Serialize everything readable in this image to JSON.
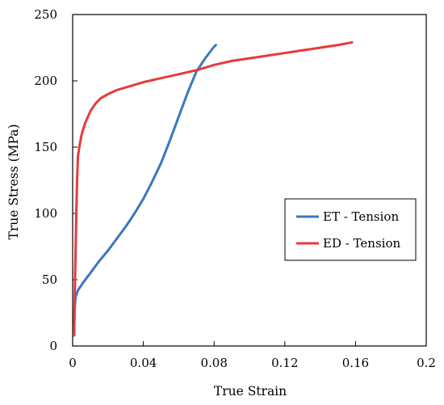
{
  "chart_data": {
    "type": "line",
    "title": "",
    "xlabel": "True Strain",
    "ylabel": "True Stress (MPa)",
    "xlim": [
      0,
      0.2
    ],
    "ylim": [
      0,
      250
    ],
    "x_ticks": [
      0,
      0.04,
      0.08,
      0.12,
      0.16,
      0.2
    ],
    "x_tick_labels": [
      "0",
      "0.04",
      "0.08",
      "0.12",
      "0.16",
      "0.2"
    ],
    "y_ticks": [
      0,
      50,
      100,
      150,
      200,
      250
    ],
    "y_tick_labels": [
      "0",
      "50",
      "100",
      "150",
      "200",
      "250"
    ],
    "grid": false,
    "legend_position": "right-center",
    "series": [
      {
        "name": "ET - Tension",
        "color": "#3a78c0",
        "points": [
          [
            0.0008,
            8
          ],
          [
            0.001,
            20
          ],
          [
            0.0012,
            30
          ],
          [
            0.0017,
            37
          ],
          [
            0.003,
            42
          ],
          [
            0.006,
            48
          ],
          [
            0.01,
            55
          ],
          [
            0.015,
            64
          ],
          [
            0.02,
            72
          ],
          [
            0.025,
            81
          ],
          [
            0.03,
            90
          ],
          [
            0.035,
            100
          ],
          [
            0.04,
            111
          ],
          [
            0.045,
            124
          ],
          [
            0.05,
            138
          ],
          [
            0.055,
            155
          ],
          [
            0.06,
            173
          ],
          [
            0.065,
            191
          ],
          [
            0.07,
            207
          ],
          [
            0.075,
            217
          ],
          [
            0.0795,
            225
          ],
          [
            0.081,
            227
          ]
        ]
      },
      {
        "name": "ED - Tension",
        "color": "#e83a3a",
        "points": [
          [
            0.0008,
            8
          ],
          [
            0.001,
            25
          ],
          [
            0.0015,
            60
          ],
          [
            0.002,
            95
          ],
          [
            0.0025,
            125
          ],
          [
            0.003,
            143
          ],
          [
            0.004,
            152
          ],
          [
            0.005,
            159
          ],
          [
            0.007,
            168
          ],
          [
            0.01,
            177
          ],
          [
            0.013,
            183
          ],
          [
            0.016,
            187
          ],
          [
            0.02,
            190
          ],
          [
            0.025,
            193
          ],
          [
            0.03,
            195
          ],
          [
            0.035,
            197
          ],
          [
            0.04,
            199
          ],
          [
            0.05,
            202
          ],
          [
            0.06,
            205
          ],
          [
            0.07,
            208
          ],
          [
            0.08,
            212
          ],
          [
            0.09,
            215
          ],
          [
            0.1,
            217
          ],
          [
            0.11,
            219
          ],
          [
            0.12,
            221
          ],
          [
            0.13,
            223
          ],
          [
            0.14,
            225
          ],
          [
            0.15,
            227
          ],
          [
            0.158,
            229
          ]
        ]
      }
    ]
  }
}
